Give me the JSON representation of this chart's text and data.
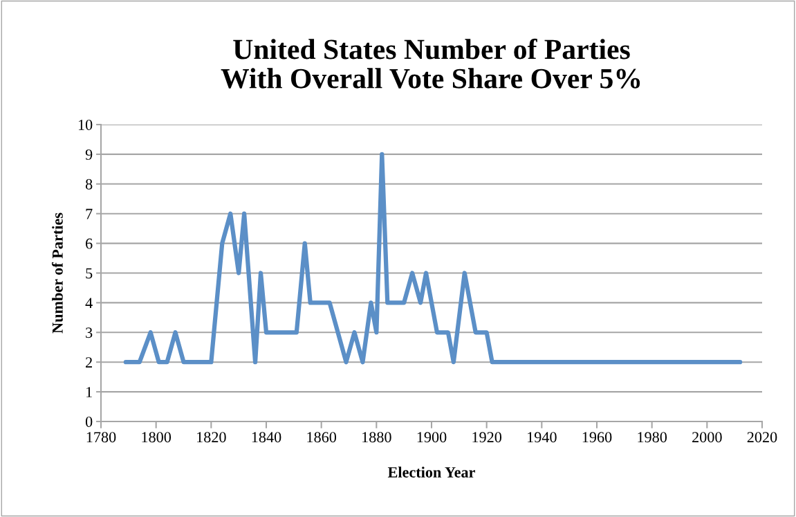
{
  "chart_data": {
    "type": "line",
    "title": "United States Number of Parties\nWith Overall Vote Share Over 5%",
    "xlabel": "Election Year",
    "ylabel": "Number of Parties",
    "x": [
      1789,
      1794,
      1798,
      1801,
      1804,
      1807,
      1810,
      1820,
      1824,
      1827,
      1830,
      1832,
      1836,
      1838,
      1840,
      1851,
      1854,
      1856,
      1863,
      1869,
      1872,
      1875,
      1878,
      1880,
      1882,
      1884,
      1890,
      1893,
      1896,
      1898,
      1902,
      1906,
      1908,
      1912,
      1916,
      1920,
      1922,
      2012
    ],
    "series": [
      {
        "color": "#5b8fc7",
        "values": [
          2,
          2,
          3,
          2,
          2,
          3,
          2,
          2,
          6,
          7,
          5,
          7,
          2,
          5,
          3,
          3,
          6,
          4,
          4,
          2,
          3,
          2,
          4,
          3,
          9,
          4,
          4,
          5,
          4,
          5,
          3,
          3,
          2,
          5,
          3,
          3,
          2,
          2
        ]
      }
    ],
    "xlim": [
      1780,
      2020
    ],
    "xticks": [
      1780,
      1800,
      1820,
      1840,
      1860,
      1880,
      1900,
      1920,
      1940,
      1960,
      1980,
      2000,
      2020
    ],
    "ylim": [
      0,
      10
    ],
    "yticks": [
      0,
      1,
      2,
      3,
      4,
      5,
      6,
      7,
      8,
      9,
      10
    ],
    "grid": "y",
    "marker": "none",
    "line_style": "solid"
  }
}
